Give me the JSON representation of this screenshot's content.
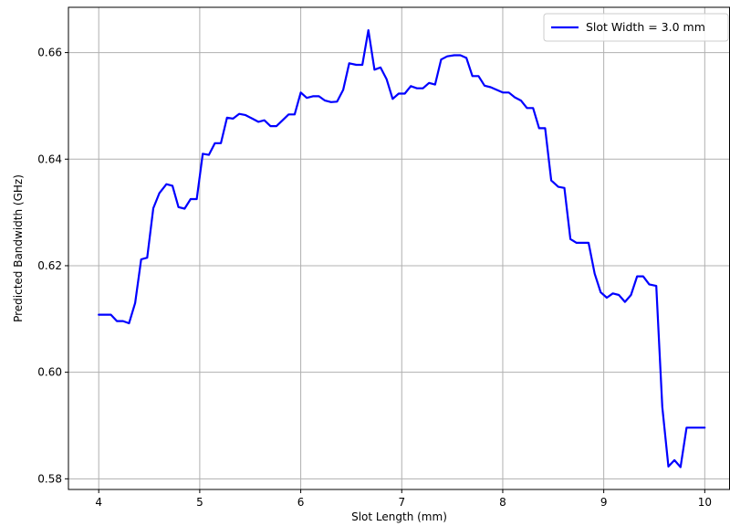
{
  "chart_data": {
    "type": "line",
    "xlabel": "Slot Length (mm)",
    "ylabel": "Predicted Bandwidth (GHz)",
    "xlim": [
      3.7,
      10.25
    ],
    "ylim": [
      0.578,
      0.6685
    ],
    "xticks": [
      4,
      5,
      6,
      7,
      8,
      9,
      10
    ],
    "xtick_labels": [
      "4",
      "5",
      "6",
      "7",
      "8",
      "9",
      "10"
    ],
    "yticks": [
      0.58,
      0.6,
      0.62,
      0.64,
      0.66
    ],
    "ytick_labels": [
      "0.58",
      "0.60",
      "0.62",
      "0.64",
      "0.66"
    ],
    "grid": true,
    "legend_position": "top-right",
    "series": [
      {
        "name": "Slot Width = 3.0 mm",
        "color": "#0000ff",
        "x": [
          4.0,
          4.06,
          4.12,
          4.18,
          4.24,
          4.3,
          4.36,
          4.42,
          4.48,
          4.54,
          4.6,
          4.67,
          4.73,
          4.79,
          4.85,
          4.91,
          4.97,
          5.03,
          5.09,
          5.15,
          5.21,
          5.27,
          5.33,
          5.39,
          5.45,
          5.52,
          5.58,
          5.64,
          5.7,
          5.76,
          5.82,
          5.88,
          5.94,
          6.0,
          6.06,
          6.12,
          6.18,
          6.24,
          6.3,
          6.36,
          6.42,
          6.48,
          6.55,
          6.61,
          6.67,
          6.73,
          6.79,
          6.85,
          6.91,
          6.97,
          7.03,
          7.09,
          7.15,
          7.21,
          7.27,
          7.33,
          7.39,
          7.45,
          7.52,
          7.58,
          7.64,
          7.7,
          7.76,
          7.82,
          7.88,
          7.94,
          8.0,
          8.06,
          8.12,
          8.18,
          8.24,
          8.3,
          8.36,
          8.42,
          8.48,
          8.55,
          8.61,
          8.67,
          8.73,
          8.79,
          8.85,
          8.91,
          8.97,
          9.03,
          9.09,
          9.15,
          9.21,
          9.27,
          9.33,
          9.39,
          9.45,
          9.52,
          9.58,
          9.64,
          9.7,
          9.76,
          9.82,
          9.88,
          9.94,
          10.0
        ],
        "y": [
          0.6108,
          0.6108,
          0.6108,
          0.6096,
          0.6096,
          0.6092,
          0.613,
          0.6212,
          0.6215,
          0.6308,
          0.6336,
          0.6353,
          0.635,
          0.631,
          0.6307,
          0.6325,
          0.6325,
          0.641,
          0.6408,
          0.643,
          0.643,
          0.6478,
          0.6476,
          0.6485,
          0.6483,
          0.6476,
          0.647,
          0.6473,
          0.6462,
          0.6462,
          0.6473,
          0.6484,
          0.6484,
          0.6525,
          0.6515,
          0.6518,
          0.6518,
          0.651,
          0.6507,
          0.6508,
          0.653,
          0.658,
          0.6577,
          0.6577,
          0.6642,
          0.6568,
          0.6572,
          0.655,
          0.6513,
          0.6523,
          0.6523,
          0.6537,
          0.6533,
          0.6533,
          0.6543,
          0.654,
          0.6587,
          0.6593,
          0.6595,
          0.6595,
          0.659,
          0.6556,
          0.6556,
          0.6538,
          0.6535,
          0.653,
          0.6525,
          0.6525,
          0.6516,
          0.651,
          0.6496,
          0.6496,
          0.6458,
          0.6458,
          0.636,
          0.6348,
          0.6346,
          0.625,
          0.6243,
          0.6243,
          0.6243,
          0.6185,
          0.615,
          0.614,
          0.6148,
          0.6145,
          0.6132,
          0.6145,
          0.618,
          0.618,
          0.6165,
          0.6162,
          0.5935,
          0.5823,
          0.5835,
          0.5822,
          0.5896,
          0.5896,
          0.5896,
          0.5896
        ]
      }
    ]
  }
}
